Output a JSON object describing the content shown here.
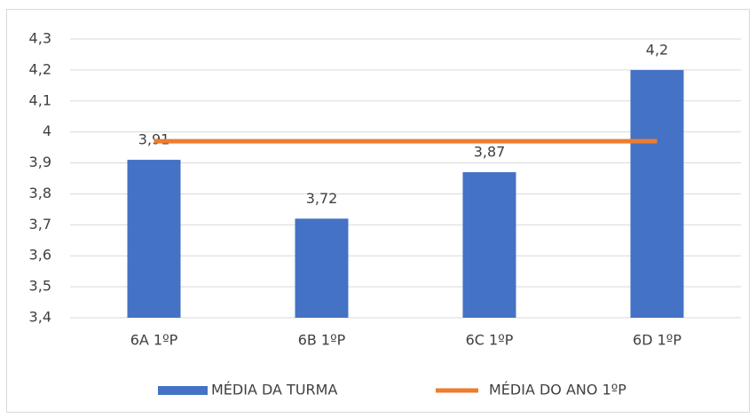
{
  "chart_data": {
    "type": "bar",
    "categories": [
      "6A 1ºP",
      "6B 1ºP",
      "6C 1ºP",
      "6D 1ºP"
    ],
    "series": [
      {
        "name": "MÉDIA DA TURMA",
        "color": "#4472c4",
        "type": "bar",
        "values": [
          3.91,
          3.72,
          3.87,
          4.2
        ],
        "value_labels": [
          "3,91",
          "3,72",
          "3,87",
          "4,2"
        ]
      },
      {
        "name": "MÉDIA DO ANO 1ºP",
        "color": "#ed7d31",
        "type": "line",
        "values": [
          3.97,
          3.97,
          3.97,
          3.97
        ]
      }
    ],
    "ylim": [
      3.4,
      4.3
    ],
    "yticks": [
      {
        "value": 3.4,
        "label": "3,4"
      },
      {
        "value": 3.5,
        "label": "3,5"
      },
      {
        "value": 3.6,
        "label": "3,6"
      },
      {
        "value": 3.7,
        "label": "3,7"
      },
      {
        "value": 3.8,
        "label": "3,8"
      },
      {
        "value": 3.9,
        "label": "3,9"
      },
      4,
      {
        "value": 4.1,
        "label": "4,1"
      },
      {
        "value": 4.2,
        "label": "4,2"
      },
      {
        "value": 4.3,
        "label": "4,3"
      }
    ],
    "grid": true,
    "legend": "bottom"
  }
}
